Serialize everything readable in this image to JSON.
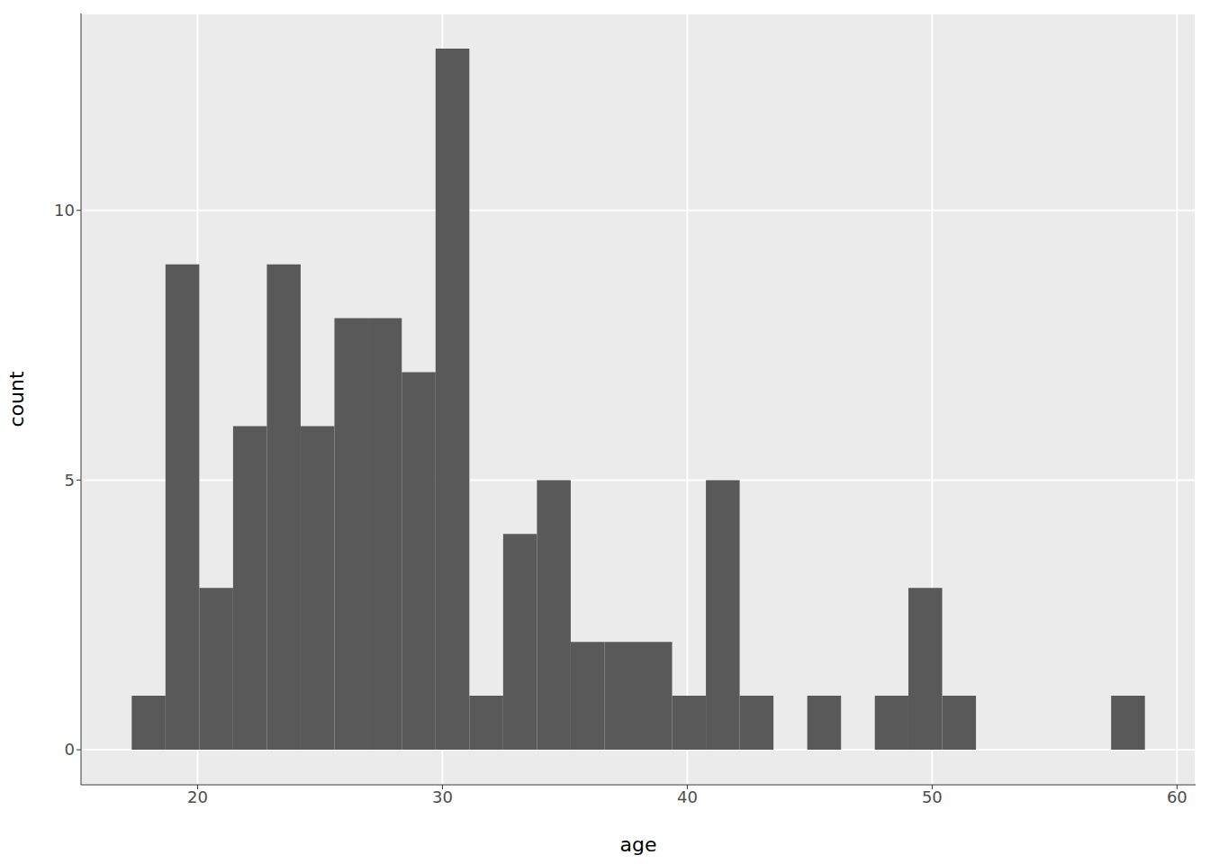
{
  "chart_data": {
    "type": "histogram",
    "x_label": "age",
    "y_label": "count",
    "bins": [
      17.31,
      18.69,
      20.07,
      21.45,
      22.83,
      24.21,
      25.59,
      26.97,
      28.34,
      29.72,
      31.1,
      32.48,
      33.86,
      35.24,
      36.62,
      38.0,
      39.38,
      40.76,
      42.14,
      43.52,
      44.9,
      46.28,
      47.66,
      49.03,
      50.41,
      51.79,
      53.17,
      54.55,
      55.93,
      57.31,
      58.69
    ],
    "values": [
      1,
      9,
      3,
      6,
      9,
      6,
      8,
      8,
      7,
      13,
      1,
      4,
      5,
      2,
      2,
      2,
      1,
      5,
      1,
      0,
      1,
      0,
      1,
      3,
      1,
      0,
      0,
      0,
      0,
      1
    ],
    "color": "#595959",
    "xlim": [
      15.24,
      60.76
    ],
    "ylim": [
      -0.65,
      13.65
    ],
    "xticks": [
      20,
      30,
      40,
      50,
      60
    ],
    "yticks": [
      0,
      5,
      10
    ],
    "grid": true
  }
}
